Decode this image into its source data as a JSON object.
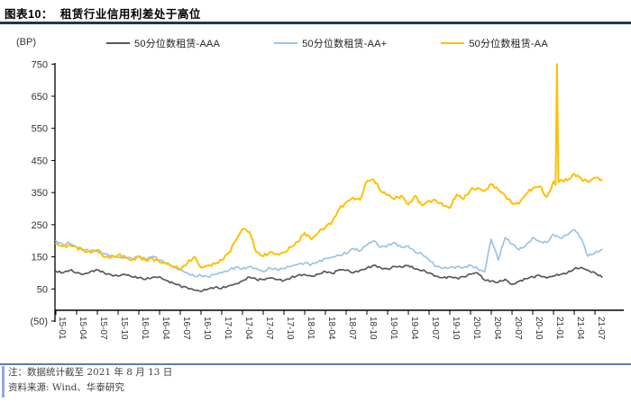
{
  "header": {
    "title": "图表10：  租赁行业信用利差处于高位"
  },
  "notes": {
    "note": "注：数据统计截至 2021 年 8 月 13 日",
    "source": "资料来源: Wind、华泰研究"
  },
  "chart_data": {
    "type": "line",
    "title": "租赁行业信用利差处于高位",
    "unit_label": "(BP)",
    "legend_position": "top",
    "grid": false,
    "x_axis": {
      "start_month": "2015-01",
      "end_month": "2021-08",
      "months_per_tick": 3,
      "tick_labels": [
        "15-01",
        "15-04",
        "15-07",
        "15-10",
        "16-01",
        "16-04",
        "16-07",
        "16-10",
        "17-01",
        "17-04",
        "17-07",
        "17-10",
        "18-01",
        "18-04",
        "18-07",
        "18-10",
        "19-01",
        "19-04",
        "19-07",
        "19-10",
        "20-01",
        "20-04",
        "20-07",
        "20-10",
        "21-01",
        "21-04",
        "21-07"
      ]
    },
    "y_axis": {
      "min": -50,
      "max": 750,
      "tick_step": 100,
      "tick_labels": [
        "(50)",
        "50",
        "150",
        "250",
        "350",
        "450",
        "550",
        "650",
        "750"
      ]
    },
    "series": [
      {
        "name": "50分位数租赁-AAA",
        "color": "#595959",
        "width": 1.7,
        "seed": 1,
        "jitter": 4,
        "points": [
          [
            0,
            105
          ],
          [
            1,
            100
          ],
          [
            2,
            108
          ],
          [
            3,
            100
          ],
          [
            4,
            96
          ],
          [
            5,
            104
          ],
          [
            6,
            110
          ],
          [
            7,
            100
          ],
          [
            8,
            94
          ],
          [
            9,
            90
          ],
          [
            10,
            95
          ],
          [
            11,
            88
          ],
          [
            12,
            85
          ],
          [
            13,
            80
          ],
          [
            14,
            86
          ],
          [
            15,
            88
          ],
          [
            16,
            76
          ],
          [
            17,
            68
          ],
          [
            18,
            60
          ],
          [
            19,
            54
          ],
          [
            20,
            46
          ],
          [
            21,
            42
          ],
          [
            22,
            50
          ],
          [
            23,
            55
          ],
          [
            24,
            52
          ],
          [
            25,
            60
          ],
          [
            26,
            66
          ],
          [
            27,
            75
          ],
          [
            28,
            87
          ],
          [
            29,
            80
          ],
          [
            30,
            79
          ],
          [
            31,
            84
          ],
          [
            32,
            79
          ],
          [
            33,
            76
          ],
          [
            34,
            85
          ],
          [
            35,
            92
          ],
          [
            36,
            95
          ],
          [
            37,
            90
          ],
          [
            38,
            96
          ],
          [
            39,
            104
          ],
          [
            40,
            98
          ],
          [
            41,
            110
          ],
          [
            42,
            108
          ],
          [
            43,
            100
          ],
          [
            44,
            108
          ],
          [
            45,
            115
          ],
          [
            46,
            124
          ],
          [
            47,
            116
          ],
          [
            48,
            112
          ],
          [
            49,
            120
          ],
          [
            50,
            118
          ],
          [
            51,
            123
          ],
          [
            52,
            112
          ],
          [
            53,
            107
          ],
          [
            54,
            100
          ],
          [
            55,
            90
          ],
          [
            56,
            85
          ],
          [
            57,
            88
          ],
          [
            58,
            84
          ],
          [
            59,
            88
          ],
          [
            60,
            96
          ],
          [
            61,
            100
          ],
          [
            62,
            78
          ],
          [
            63,
            74
          ],
          [
            64,
            70
          ],
          [
            65,
            80
          ],
          [
            66,
            64
          ],
          [
            67,
            74
          ],
          [
            68,
            82
          ],
          [
            69,
            88
          ],
          [
            70,
            92
          ],
          [
            71,
            84
          ],
          [
            72,
            90
          ],
          [
            73,
            95
          ],
          [
            74,
            100
          ],
          [
            75,
            112
          ],
          [
            76,
            117
          ],
          [
            77,
            108
          ],
          [
            78,
            100
          ],
          [
            79,
            87
          ]
        ]
      },
      {
        "name": "50分位数租赁-AA+",
        "color": "#9DC3E6",
        "width": 1.7,
        "seed": 2,
        "jitter": 5,
        "points": [
          [
            0,
            200
          ],
          [
            1,
            188
          ],
          [
            2,
            192
          ],
          [
            3,
            180
          ],
          [
            4,
            172
          ],
          [
            5,
            168
          ],
          [
            6,
            172
          ],
          [
            7,
            160
          ],
          [
            8,
            154
          ],
          [
            9,
            148
          ],
          [
            10,
            152
          ],
          [
            11,
            145
          ],
          [
            12,
            150
          ],
          [
            13,
            142
          ],
          [
            14,
            152
          ],
          [
            15,
            140
          ],
          [
            16,
            130
          ],
          [
            17,
            120
          ],
          [
            18,
            110
          ],
          [
            19,
            100
          ],
          [
            20,
            90
          ],
          [
            21,
            92
          ],
          [
            22,
            88
          ],
          [
            23,
            95
          ],
          [
            24,
            100
          ],
          [
            25,
            108
          ],
          [
            26,
            118
          ],
          [
            27,
            112
          ],
          [
            28,
            120
          ],
          [
            29,
            114
          ],
          [
            30,
            104
          ],
          [
            31,
            115
          ],
          [
            32,
            110
          ],
          [
            33,
            114
          ],
          [
            34,
            120
          ],
          [
            35,
            126
          ],
          [
            36,
            131
          ],
          [
            37,
            127
          ],
          [
            38,
            135
          ],
          [
            39,
            145
          ],
          [
            40,
            150
          ],
          [
            41,
            155
          ],
          [
            42,
            160
          ],
          [
            43,
            176
          ],
          [
            44,
            168
          ],
          [
            45,
            187
          ],
          [
            46,
            200
          ],
          [
            47,
            180
          ],
          [
            48,
            186
          ],
          [
            49,
            194
          ],
          [
            50,
            180
          ],
          [
            51,
            184
          ],
          [
            52,
            164
          ],
          [
            53,
            158
          ],
          [
            54,
            140
          ],
          [
            55,
            120
          ],
          [
            56,
            114
          ],
          [
            57,
            116
          ],
          [
            58,
            120
          ],
          [
            59,
            117
          ],
          [
            60,
            124
          ],
          [
            61,
            114
          ],
          [
            62,
            103
          ],
          [
            63,
            205
          ],
          [
            64,
            140
          ],
          [
            65,
            210
          ],
          [
            66,
            190
          ],
          [
            67,
            172
          ],
          [
            68,
            185
          ],
          [
            69,
            210
          ],
          [
            70,
            198
          ],
          [
            71,
            194
          ],
          [
            72,
            220
          ],
          [
            73,
            208
          ],
          [
            74,
            218
          ],
          [
            75,
            235
          ],
          [
            76,
            208
          ],
          [
            77,
            152
          ],
          [
            78,
            162
          ],
          [
            79,
            173
          ]
        ]
      },
      {
        "name": "50分位数租赁-AA",
        "color": "#FFC000",
        "width": 2,
        "seed": 3,
        "jitter": 6,
        "points": [
          [
            0,
            192
          ],
          [
            1,
            183
          ],
          [
            2,
            186
          ],
          [
            3,
            180
          ],
          [
            4,
            170
          ],
          [
            5,
            163
          ],
          [
            6,
            168
          ],
          [
            7,
            150
          ],
          [
            8,
            148
          ],
          [
            9,
            155
          ],
          [
            10,
            148
          ],
          [
            11,
            140
          ],
          [
            12,
            152
          ],
          [
            13,
            138
          ],
          [
            14,
            146
          ],
          [
            15,
            134
          ],
          [
            16,
            128
          ],
          [
            17,
            118
          ],
          [
            18,
            112
          ],
          [
            19,
            130
          ],
          [
            20,
            150
          ],
          [
            21,
            117
          ],
          [
            22,
            124
          ],
          [
            23,
            128
          ],
          [
            24,
            140
          ],
          [
            25,
            162
          ],
          [
            26,
            200
          ],
          [
            27,
            236
          ],
          [
            28,
            228
          ],
          [
            29,
            165
          ],
          [
            30,
            152
          ],
          [
            31,
            165
          ],
          [
            32,
            158
          ],
          [
            33,
            164
          ],
          [
            34,
            180
          ],
          [
            35,
            196
          ],
          [
            36,
            224
          ],
          [
            37,
            204
          ],
          [
            38,
            226
          ],
          [
            39,
            243
          ],
          [
            40,
            260
          ],
          [
            41,
            300
          ],
          [
            42,
            320
          ],
          [
            43,
            335
          ],
          [
            44,
            327
          ],
          [
            45,
            386
          ],
          [
            46,
            390
          ],
          [
            47,
            355
          ],
          [
            48,
            342
          ],
          [
            49,
            330
          ],
          [
            50,
            340
          ],
          [
            51,
            313
          ],
          [
            52,
            340
          ],
          [
            53,
            310
          ],
          [
            54,
            325
          ],
          [
            55,
            325
          ],
          [
            56,
            310
          ],
          [
            57,
            302
          ],
          [
            58,
            344
          ],
          [
            59,
            330
          ],
          [
            60,
            358
          ],
          [
            61,
            365
          ],
          [
            62,
            355
          ],
          [
            63,
            377
          ],
          [
            64,
            360
          ],
          [
            65,
            341
          ],
          [
            66,
            316
          ],
          [
            67,
            315
          ],
          [
            68,
            345
          ],
          [
            69,
            363
          ],
          [
            70,
            370
          ],
          [
            71,
            336
          ],
          [
            71.6,
            360
          ],
          [
            72,
            385
          ],
          [
            72.3,
            374
          ],
          [
            72.5,
            750
          ],
          [
            72.7,
            382
          ],
          [
            73,
            390
          ],
          [
            74,
            388
          ],
          [
            75,
            408
          ],
          [
            76,
            393
          ],
          [
            77,
            383
          ],
          [
            78,
            396
          ],
          [
            79,
            390
          ]
        ]
      }
    ]
  }
}
